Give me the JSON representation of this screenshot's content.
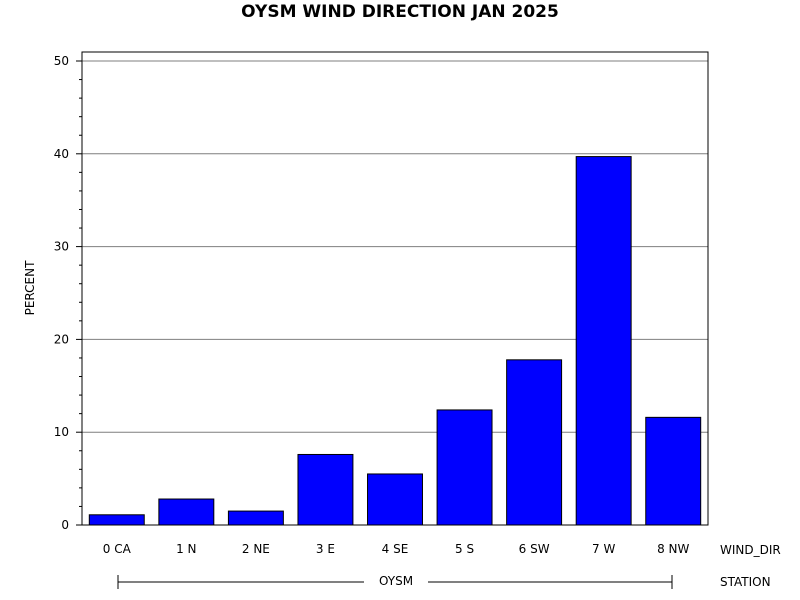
{
  "chart_data": {
    "type": "bar",
    "title": "OYSM WIND DIRECTION JAN 2025",
    "ylabel": "PERCENT",
    "xlabel": "WIND_DIR",
    "group_label": "STATION",
    "group_value": "OYSM",
    "categories": [
      "0 CA",
      "1 N",
      "2 NE",
      "3 E",
      "4 SE",
      "5 S",
      "6 SW",
      "7 W",
      "8 NW"
    ],
    "values": [
      1.1,
      2.8,
      1.5,
      7.6,
      5.5,
      12.4,
      17.8,
      39.7,
      11.6
    ],
    "ylim": [
      0,
      50
    ],
    "yticks": [
      0,
      10,
      20,
      30,
      40,
      50
    ],
    "grid": true,
    "bar_color": "#0000ff"
  }
}
